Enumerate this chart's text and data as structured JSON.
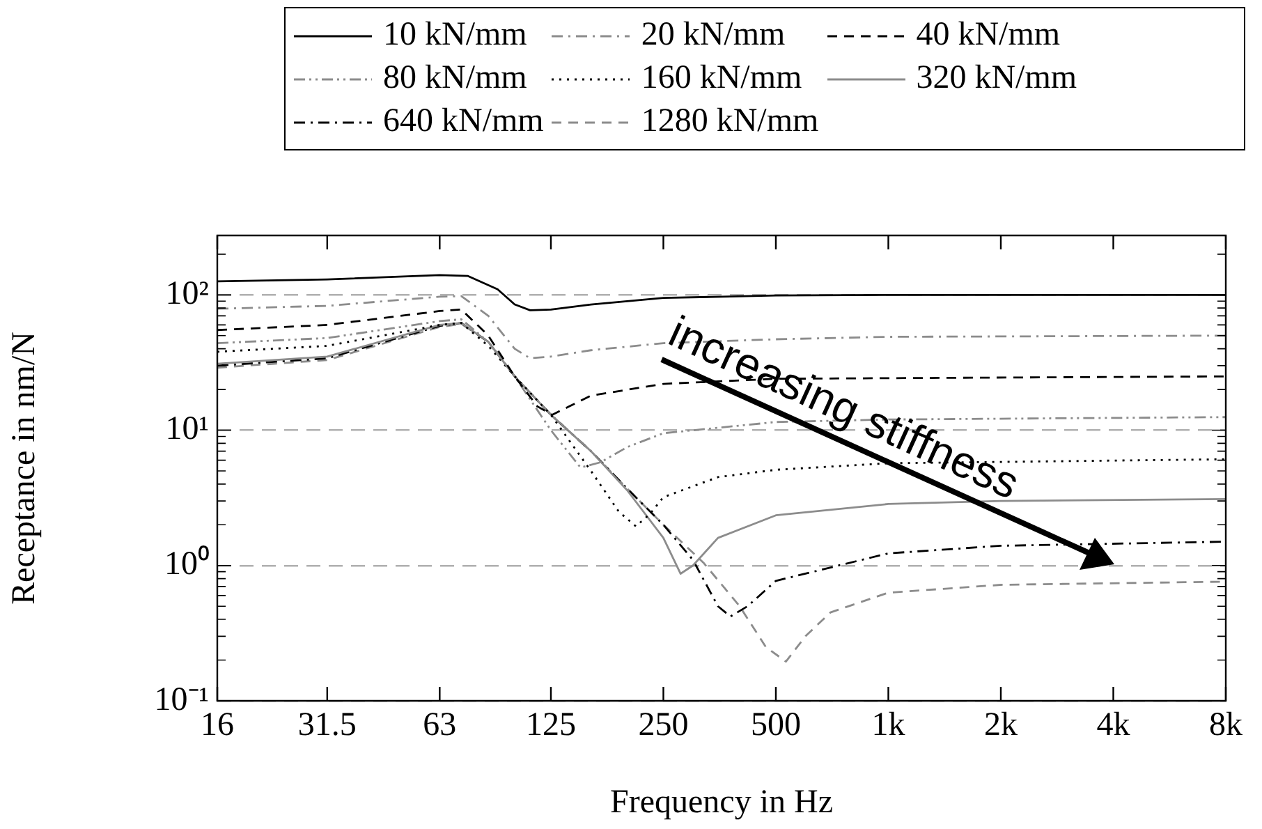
{
  "chart_data": {
    "type": "line",
    "xlabel": "Frequency in Hz",
    "ylabel": "Receptance in nm/N",
    "log": "xy",
    "grid": "y",
    "legend": "top",
    "marker": "none",
    "xlim": [
      16,
      8000
    ],
    "xticks": [
      16,
      31.5,
      63,
      125,
      250,
      500,
      {
        "value": 1000,
        "label": "1k"
      },
      {
        "value": 2000,
        "label": "2k"
      },
      {
        "value": 4000,
        "label": "4k"
      },
      {
        "value": 8000,
        "label": "8k"
      }
    ],
    "ylim": [
      0.1,
      275
    ],
    "yticks": [
      {
        "value": 0.1,
        "label": "10⁻¹"
      },
      {
        "value": 1,
        "label": "10⁰"
      },
      {
        "value": 10,
        "label": "10¹"
      },
      {
        "value": 100,
        "label": "10²"
      }
    ],
    "annotations": [
      "increasing stiffness"
    ],
    "series": [
      {
        "name": "10 kN/mm",
        "color": "#000000",
        "line_style": "solid",
        "x": [
          16,
          31.5,
          63,
          75,
          90,
          100,
          110,
          125,
          160,
          250,
          500,
          1000,
          8000
        ],
        "values": [
          126,
          130,
          140,
          138,
          110,
          85,
          77,
          78,
          85,
          95,
          99,
          100,
          100
        ]
      },
      {
        "name": "20 kN/mm",
        "color": "#8c8c8c",
        "line_style": "dashdot",
        "x": [
          16,
          31.5,
          63,
          72,
          85,
          100,
          110,
          125,
          160,
          250,
          500,
          1000,
          8000
        ],
        "values": [
          79,
          83,
          97,
          98,
          70,
          40,
          34,
          35,
          39,
          44,
          47,
          49,
          50
        ]
      },
      {
        "name": "40 kN/mm",
        "color": "#000000",
        "line_style": "dashed",
        "x": [
          16,
          31.5,
          63,
          72,
          85,
          100,
          115,
          126,
          140,
          160,
          250,
          500,
          8000
        ],
        "values": [
          55,
          60,
          76,
          78,
          50,
          25,
          15,
          13,
          15,
          18,
          22,
          24,
          25
        ]
      },
      {
        "name": "80 kN/mm",
        "color": "#8c8c8c",
        "line_style": "dashdotdot",
        "x": [
          16,
          31.5,
          63,
          72,
          85,
          100,
          125,
          150,
          170,
          200,
          250,
          500,
          1000,
          8000
        ],
        "values": [
          44,
          48,
          64,
          66,
          45,
          25,
          10,
          5.3,
          5.8,
          7.5,
          9.5,
          11.5,
          12,
          12.5
        ]
      },
      {
        "name": "160 kN/mm",
        "color": "#000000",
        "line_style": "dotted",
        "x": [
          16,
          31.5,
          63,
          72,
          85,
          100,
          125,
          160,
          190,
          211,
          230,
          250,
          350,
          500,
          1000,
          8000
        ],
        "values": [
          38,
          42,
          60,
          62,
          42,
          25,
          13,
          5,
          2.5,
          1.95,
          2.4,
          3.2,
          4.5,
          5.1,
          5.7,
          6.1
        ]
      },
      {
        "name": "320 kN/mm",
        "color": "#8c8c8c",
        "line_style": "solid",
        "x": [
          16,
          31.5,
          63,
          72,
          85,
          100,
          125,
          160,
          200,
          250,
          278,
          300,
          350,
          500,
          1000,
          2000,
          8000
        ],
        "values": [
          31,
          35,
          60,
          62,
          45,
          25,
          13,
          7,
          3.6,
          1.6,
          0.87,
          1,
          1.6,
          2.35,
          2.85,
          3,
          3.1
        ]
      },
      {
        "name": "640 kN/mm",
        "color": "#000000",
        "line_style": "dashdot",
        "x": [
          16,
          31.5,
          63,
          72,
          85,
          100,
          125,
          160,
          200,
          250,
          300,
          350,
          378,
          420,
          500,
          1000,
          2000,
          8000
        ],
        "values": [
          30,
          34,
          59,
          62,
          45,
          25,
          13,
          7,
          3.7,
          2,
          1.1,
          0.5,
          0.42,
          0.5,
          0.77,
          1.23,
          1.4,
          1.5
        ]
      },
      {
        "name": "1280 kN/mm",
        "color": "#8c8c8c",
        "line_style": "dashed",
        "x": [
          16,
          31.5,
          63,
          72,
          85,
          100,
          125,
          160,
          200,
          250,
          320,
          400,
          470,
          532,
          600,
          700,
          1000,
          2000,
          8000
        ],
        "values": [
          29,
          33,
          58,
          61,
          45,
          25,
          13,
          7,
          3.7,
          2,
          1.05,
          0.5,
          0.25,
          0.195,
          0.3,
          0.45,
          0.63,
          0.72,
          0.76
        ]
      }
    ]
  }
}
